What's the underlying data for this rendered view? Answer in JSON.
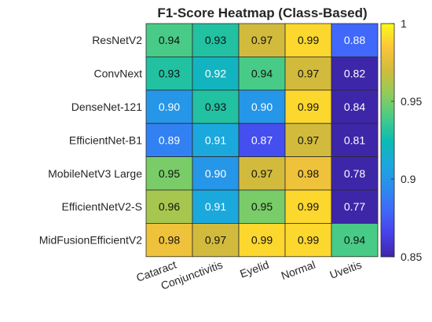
{
  "chart_data": {
    "type": "heatmap",
    "title": "F1-Score Heatmap (Class-Based)",
    "rows": [
      "ResNetV2",
      "ConvNext",
      "DenseNet-121",
      "EfficientNet-B1",
      "MobileNetV3 Large",
      "EfficientNetV2-S",
      "MidFusionEfficientV2"
    ],
    "columns": [
      "Cataract",
      "Conjunctivitis",
      "Eyelid",
      "Normal",
      "Uveitis"
    ],
    "values": [
      [
        0.94,
        0.93,
        0.97,
        0.99,
        0.88
      ],
      [
        0.93,
        0.92,
        0.94,
        0.97,
        0.82
      ],
      [
        0.9,
        0.93,
        0.9,
        0.99,
        0.84
      ],
      [
        0.89,
        0.91,
        0.87,
        0.97,
        0.81
      ],
      [
        0.95,
        0.9,
        0.97,
        0.98,
        0.78
      ],
      [
        0.96,
        0.91,
        0.95,
        0.99,
        0.77
      ],
      [
        0.98,
        0.97,
        0.99,
        0.99,
        0.94
      ]
    ],
    "labels": [
      [
        "0.94",
        "0.93",
        "0.97",
        "0.99",
        "0.88"
      ],
      [
        "0.93",
        "0.92",
        "0.94",
        "0.97",
        "0.82"
      ],
      [
        "0.90",
        "0.93",
        "0.90",
        "0.99",
        "0.84"
      ],
      [
        "0.89",
        "0.91",
        "0.87",
        "0.97",
        "0.81"
      ],
      [
        "0.95",
        "0.90",
        "0.97",
        "0.98",
        "0.78"
      ],
      [
        "0.96",
        "0.91",
        "0.95",
        "0.99",
        "0.77"
      ],
      [
        "0.98",
        "0.97",
        "0.99",
        "0.99",
        "0.94"
      ]
    ],
    "colormap": "parula",
    "colorbar": {
      "range": [
        0.85,
        1.0
      ],
      "ticks": [
        0.85,
        0.9,
        0.95,
        1.0
      ],
      "tick_labels": [
        "0.85",
        "0.9",
        "0.95",
        "1"
      ]
    },
    "grid": false
  }
}
